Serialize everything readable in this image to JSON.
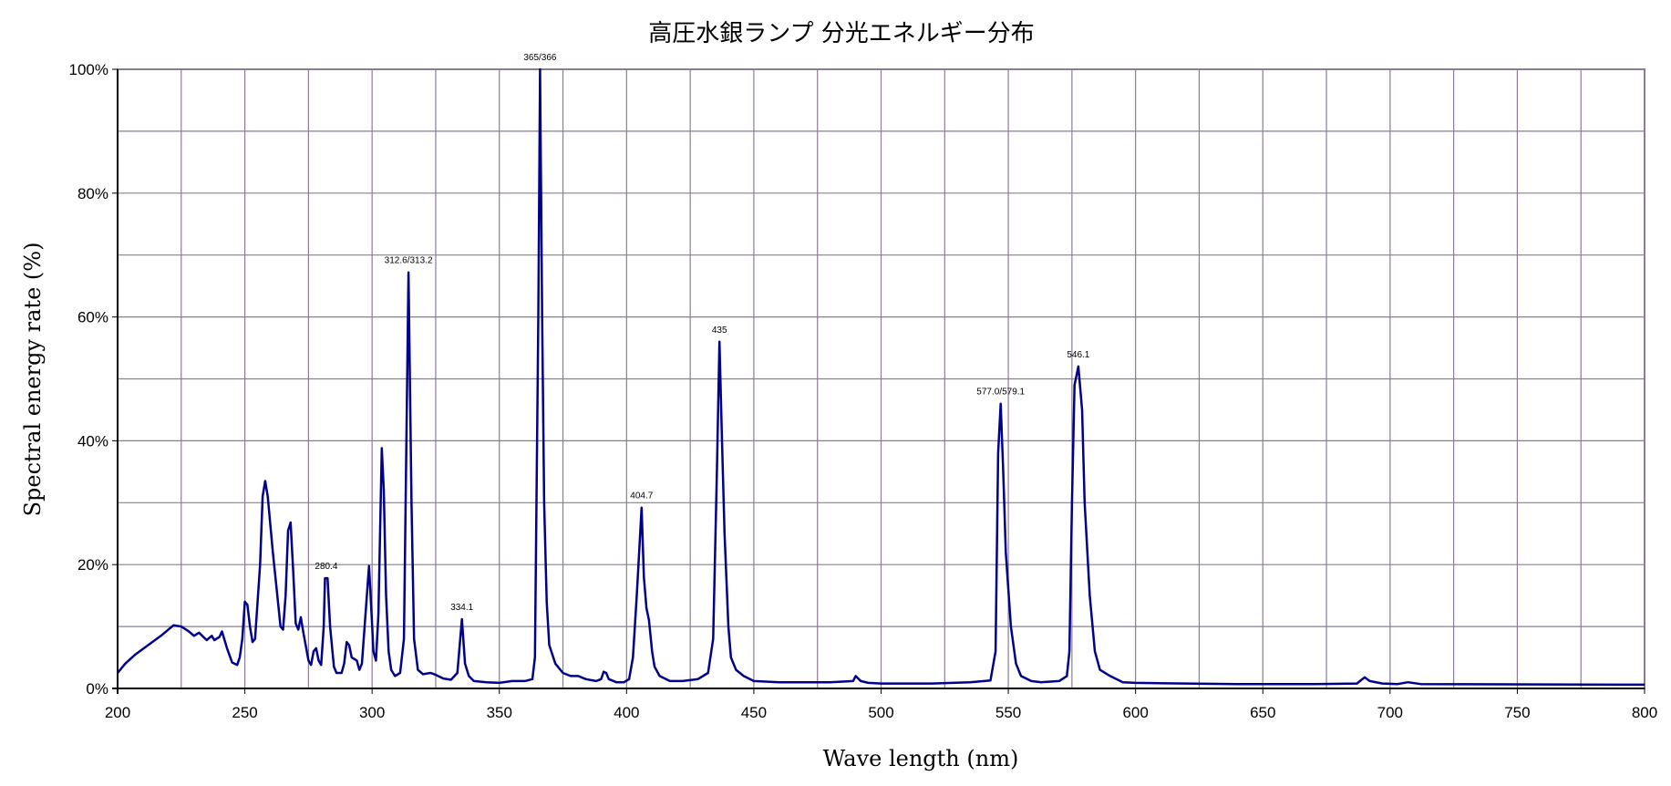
{
  "chart_data": {
    "type": "line",
    "title": "高圧水銀ランプ  分光エネルギー分布",
    "xlabel": "Wave length (nm)",
    "ylabel": "Spectral energy rate (%)",
    "xlim": [
      200,
      800
    ],
    "ylim": [
      0,
      100
    ],
    "x_ticks": [
      200,
      250,
      300,
      350,
      400,
      450,
      500,
      550,
      600,
      650,
      700,
      750,
      800
    ],
    "x_tick_labels": [
      "200",
      "250",
      "300",
      "350",
      "400",
      "450",
      "500",
      "550",
      "600",
      "650",
      "700",
      "750",
      "800"
    ],
    "x_minor_grid_step": 25,
    "y_ticks": [
      0,
      20,
      40,
      60,
      80,
      100
    ],
    "y_tick_labels": [
      "0%",
      "20%",
      "40%",
      "60%",
      "80%",
      "100%"
    ],
    "y_minor_grid_step": 10,
    "grid": true,
    "line_color": "#00008b",
    "grid_color": "#8c7b95",
    "series": [
      {
        "points": [
          [
            200,
            2.5
          ],
          [
            203,
            4
          ],
          [
            207,
            5.5
          ],
          [
            212,
            7
          ],
          [
            217,
            8.5
          ],
          [
            222,
            10.2
          ],
          [
            225,
            10
          ],
          [
            228,
            9.2
          ],
          [
            230,
            8.5
          ],
          [
            232,
            9
          ],
          [
            235,
            7.8
          ],
          [
            237,
            8.5
          ],
          [
            238,
            7.8
          ],
          [
            240,
            8.3
          ],
          [
            241,
            9.2
          ],
          [
            243,
            6.5
          ],
          [
            245,
            4.2
          ],
          [
            247,
            3.8
          ],
          [
            248,
            5
          ],
          [
            249,
            8
          ],
          [
            250,
            14
          ],
          [
            251,
            13.5
          ],
          [
            252,
            10
          ],
          [
            253,
            7.5
          ],
          [
            254,
            8
          ],
          [
            256,
            20
          ],
          [
            257,
            31
          ],
          [
            258,
            33.5
          ],
          [
            259,
            31
          ],
          [
            261,
            22
          ],
          [
            263,
            14
          ],
          [
            264,
            10
          ],
          [
            265,
            9.5
          ],
          [
            266,
            15
          ],
          [
            267,
            25.5
          ],
          [
            268,
            26.8
          ],
          [
            269,
            19
          ],
          [
            270,
            10.5
          ],
          [
            271,
            9.5
          ],
          [
            272,
            11.5
          ],
          [
            273,
            9
          ],
          [
            275,
            4.5
          ],
          [
            276,
            3.8
          ],
          [
            277,
            6
          ],
          [
            278,
            6.5
          ],
          [
            279,
            4.5
          ],
          [
            280,
            3.8
          ],
          [
            281,
            10
          ],
          [
            281.5,
            17.8
          ],
          [
            282.5,
            17.8
          ],
          [
            283.5,
            10
          ],
          [
            285,
            3.5
          ],
          [
            286,
            2.5
          ],
          [
            288,
            2.5
          ],
          [
            289,
            4
          ],
          [
            290,
            7.5
          ],
          [
            291,
            7
          ],
          [
            292,
            5
          ],
          [
            294,
            4.5
          ],
          [
            295,
            3
          ],
          [
            296,
            4
          ],
          [
            298.8,
            19.8
          ],
          [
            299.8,
            12
          ],
          [
            300.5,
            6
          ],
          [
            301.5,
            4.5
          ],
          [
            302.5,
            12
          ],
          [
            303.8,
            38.8
          ],
          [
            304.6,
            32
          ],
          [
            305.5,
            15
          ],
          [
            306.5,
            6
          ],
          [
            307.5,
            3
          ],
          [
            309,
            2
          ],
          [
            311,
            2.5
          ],
          [
            312.5,
            8
          ],
          [
            314.3,
            67.2
          ],
          [
            315.5,
            30
          ],
          [
            316.5,
            8
          ],
          [
            318,
            3
          ],
          [
            320,
            2.3
          ],
          [
            323,
            2.5
          ],
          [
            325,
            2.2
          ],
          [
            328,
            1.6
          ],
          [
            331,
            1.4
          ],
          [
            333.5,
            2.5
          ],
          [
            335.3,
            11.2
          ],
          [
            336.5,
            4
          ],
          [
            338,
            2
          ],
          [
            340,
            1.2
          ],
          [
            345,
            1
          ],
          [
            350,
            0.9
          ],
          [
            355,
            1.2
          ],
          [
            360,
            1.2
          ],
          [
            363,
            1.5
          ],
          [
            364,
            5
          ],
          [
            365.3,
            60
          ],
          [
            366,
            100
          ],
          [
            366.8,
            60
          ],
          [
            367.6,
            30
          ],
          [
            368.6,
            14
          ],
          [
            369.6,
            7
          ],
          [
            372,
            4
          ],
          [
            375,
            2.5
          ],
          [
            378,
            2
          ],
          [
            381,
            2
          ],
          [
            384,
            1.5
          ],
          [
            388,
            1.2
          ],
          [
            390,
            1.5
          ],
          [
            391,
            2.7
          ],
          [
            392,
            2.5
          ],
          [
            393,
            1.5
          ],
          [
            396,
            1
          ],
          [
            399,
            1
          ],
          [
            401,
            1.5
          ],
          [
            402.5,
            5
          ],
          [
            404,
            15
          ],
          [
            405.9,
            29.2
          ],
          [
            406.8,
            18
          ],
          [
            407.8,
            13
          ],
          [
            408.8,
            11
          ],
          [
            410,
            6
          ],
          [
            411,
            3.5
          ],
          [
            413,
            2
          ],
          [
            417,
            1.2
          ],
          [
            422,
            1.2
          ],
          [
            428,
            1.5
          ],
          [
            432,
            2.5
          ],
          [
            434,
            8
          ],
          [
            435.5,
            35
          ],
          [
            436.5,
            56
          ],
          [
            437.5,
            40
          ],
          [
            438.5,
            25
          ],
          [
            440,
            10
          ],
          [
            441,
            5
          ],
          [
            443,
            3
          ],
          [
            446,
            2
          ],
          [
            450,
            1.2
          ],
          [
            460,
            1
          ],
          [
            480,
            1
          ],
          [
            489,
            1.2
          ],
          [
            490,
            2
          ],
          [
            492,
            1.2
          ],
          [
            495,
            0.9
          ],
          [
            500,
            0.8
          ],
          [
            520,
            0.8
          ],
          [
            535,
            1
          ],
          [
            543,
            1.3
          ],
          [
            545,
            6
          ],
          [
            546,
            38
          ],
          [
            547,
            46
          ],
          [
            548,
            35
          ],
          [
            549,
            22
          ],
          [
            551,
            10
          ],
          [
            553,
            4
          ],
          [
            555,
            2
          ],
          [
            559,
            1.2
          ],
          [
            563,
            1
          ],
          [
            570,
            1.2
          ],
          [
            573,
            2
          ],
          [
            574,
            6
          ],
          [
            575,
            30
          ],
          [
            576,
            49
          ],
          [
            577.5,
            52
          ],
          [
            579,
            45
          ],
          [
            580,
            30
          ],
          [
            582,
            15
          ],
          [
            584,
            6
          ],
          [
            586,
            3
          ],
          [
            590,
            2
          ],
          [
            595,
            1
          ],
          [
            600,
            0.9
          ],
          [
            620,
            0.8
          ],
          [
            640,
            0.7
          ],
          [
            670,
            0.7
          ],
          [
            687,
            0.8
          ],
          [
            690,
            1.8
          ],
          [
            692,
            1.2
          ],
          [
            697,
            0.8
          ],
          [
            703,
            0.7
          ],
          [
            707,
            1
          ],
          [
            712,
            0.7
          ],
          [
            800,
            0.6
          ]
        ]
      }
    ],
    "annotations": [
      {
        "text": "280.4",
        "x": 282,
        "y": 17.8
      },
      {
        "text": "312.6/313.2",
        "x": 314.3,
        "y": 67.2
      },
      {
        "text": "334.1",
        "x": 335.3,
        "y": 11.2
      },
      {
        "text": "365/366",
        "x": 366,
        "y": 100
      },
      {
        "text": "404.7",
        "x": 405.9,
        "y": 29.2
      },
      {
        "text": "435",
        "x": 436.5,
        "y": 56
      },
      {
        "text": "577.0/579.1",
        "x": 547,
        "y": 46
      },
      {
        "text": "546.1",
        "x": 577.5,
        "y": 52
      }
    ]
  }
}
